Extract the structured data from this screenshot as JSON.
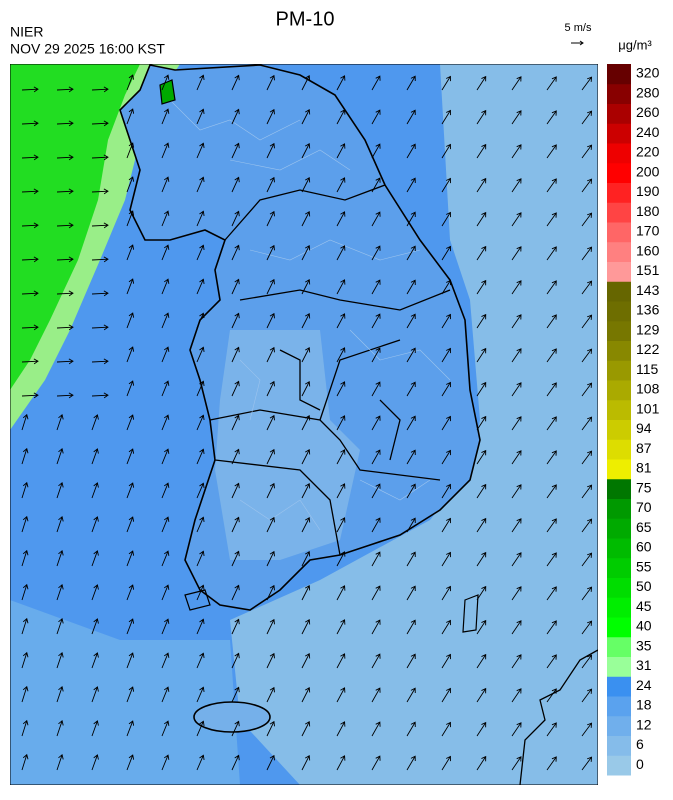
{
  "header": {
    "title": "PM-10",
    "agency": "NIER",
    "datetime": "NOV 29 2025 16:00 KST",
    "wind_scale": "5 m/s"
  },
  "colorbar": {
    "unit": "μg/m³",
    "labels": [
      0,
      6,
      12,
      18,
      24,
      31,
      35,
      40,
      45,
      50,
      55,
      60,
      65,
      70,
      75,
      81,
      87,
      94,
      101,
      108,
      115,
      122,
      129,
      136,
      143,
      151,
      160,
      170,
      180,
      190,
      200,
      220,
      240,
      260,
      280,
      320
    ],
    "colors": [
      "#99c9e8",
      "#85bcea",
      "#70afec",
      "#5aa2ee",
      "#3a90f0",
      "#99ff99",
      "#66ff66",
      "#00ff00",
      "#00ee00",
      "#00dd00",
      "#00cc00",
      "#00bb00",
      "#00aa00",
      "#009900",
      "#007700",
      "#eeee00",
      "#dddd00",
      "#cccc00",
      "#bbbb00",
      "#aaaa00",
      "#999900",
      "#888800",
      "#777700",
      "#6e6e00",
      "#666600",
      "#ff9999",
      "#ff8080",
      "#ff6666",
      "#ff4444",
      "#ff2222",
      "#ff0000",
      "#ee0000",
      "#cc0000",
      "#aa0000",
      "#880000",
      "#660000"
    ]
  }
}
